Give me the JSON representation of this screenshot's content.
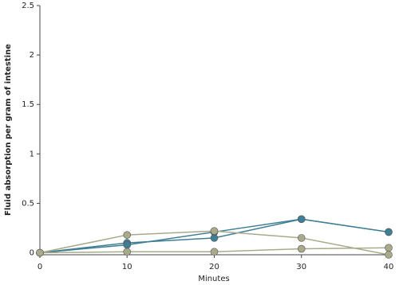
{
  "chart_data": {
    "type": "line",
    "x_label": "Minutes",
    "y_label": "Fluid absorption per gram of intestine",
    "x": [
      0,
      10,
      20,
      30,
      40
    ],
    "series": [
      {
        "color": "#3f7f95",
        "values": [
          0,
          0.1,
          0.15,
          0.34,
          0.21
        ]
      },
      {
        "color": "#3f7f95",
        "values": [
          0,
          0.08,
          0.21,
          0.34,
          0.21
        ]
      },
      {
        "color": "#a9aa8c",
        "values": [
          0,
          0.18,
          0.22,
          0.15,
          -0.02
        ]
      },
      {
        "color": "#a9aa8c",
        "values": [
          0,
          0.01,
          0.01,
          0.04,
          0.05
        ]
      }
    ],
    "xlim": [
      0,
      40
    ],
    "xticks": [
      0,
      10,
      20,
      30,
      40
    ],
    "ylim": [
      -0.02,
      2.5
    ],
    "yticks": [
      0,
      0.5,
      1,
      1.5,
      2,
      2.5
    ],
    "grid": false
  }
}
